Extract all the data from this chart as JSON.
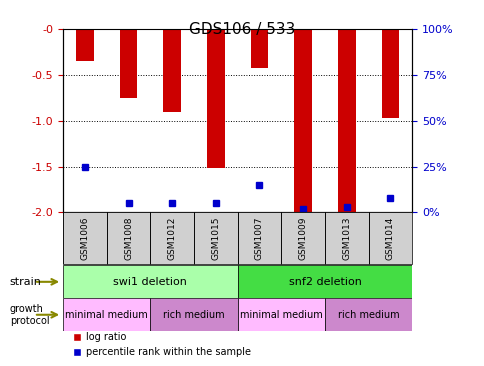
{
  "title": "GDS106 / 533",
  "samples": [
    "GSM1006",
    "GSM1008",
    "GSM1012",
    "GSM1015",
    "GSM1007",
    "GSM1009",
    "GSM1013",
    "GSM1014"
  ],
  "log_ratio": [
    -0.35,
    -0.75,
    -0.9,
    -1.52,
    -0.42,
    -2.0,
    -2.0,
    -0.97
  ],
  "percentile": [
    25,
    5,
    5,
    5,
    15,
    2,
    3,
    8
  ],
  "ylim_left": [
    -2.0,
    0.0
  ],
  "ylim_right": [
    0,
    100
  ],
  "yticks_left": [
    -2.0,
    -1.5,
    -1.0,
    -0.5,
    0.0
  ],
  "yticks_right": [
    0,
    25,
    50,
    75,
    100
  ],
  "bar_color": "#cc0000",
  "percentile_color": "#0000cc",
  "grid_color": "#000000",
  "strain_groups": [
    {
      "label": "swi1 deletion",
      "start": 0,
      "end": 4,
      "color": "#aaffaa"
    },
    {
      "label": "snf2 deletion",
      "start": 4,
      "end": 8,
      "color": "#44dd44"
    }
  ],
  "protocol_groups": [
    {
      "label": "minimal medium",
      "start": 0,
      "end": 2,
      "color": "#ffaaff"
    },
    {
      "label": "rich medium",
      "start": 2,
      "end": 4,
      "color": "#dd88dd"
    },
    {
      "label": "minimal medium",
      "start": 4,
      "end": 6,
      "color": "#ffaaff"
    },
    {
      "label": "rich medium",
      "start": 6,
      "end": 8,
      "color": "#dd88dd"
    }
  ],
  "legend_items": [
    {
      "label": "log ratio",
      "color": "#cc0000"
    },
    {
      "label": "percentile rank within the sample",
      "color": "#0000cc"
    }
  ],
  "left_axis_color": "#cc0000",
  "right_axis_color": "#0000cc",
  "bar_width": 0.4
}
